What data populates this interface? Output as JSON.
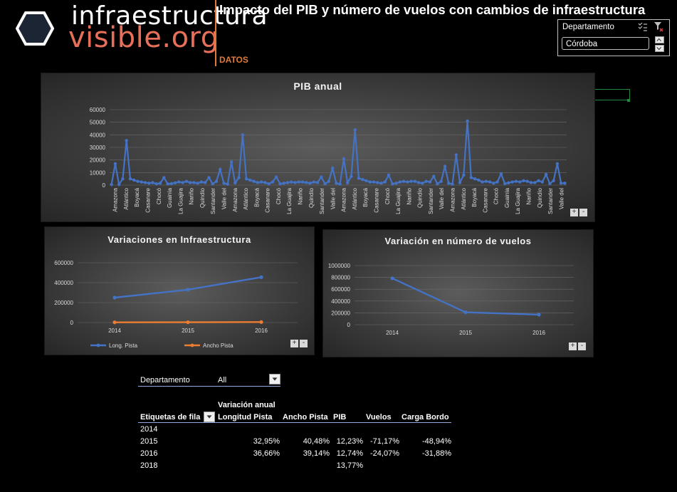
{
  "header": {
    "logo_line1": "infraestructura",
    "logo_line2": "visible.org",
    "title": "Impacto del PIB y número de vuelos con cambios de infraestructura",
    "section_label": "DATOS"
  },
  "colors": {
    "accent": "#e07a3a",
    "logo_orange": "#e8705a",
    "series_blue": "#4472c4",
    "series_orange": "#ed7d31"
  },
  "slicer": {
    "header": "Departamento",
    "selected": "Córdoba",
    "icons": [
      "multi-select-icon",
      "clear-filter-icon",
      "scroll-up-icon",
      "scroll-down-icon"
    ]
  },
  "chart_data": [
    {
      "type": "line",
      "title": "PIB anual",
      "ylim": [
        0,
        60000
      ],
      "yticks": [
        0,
        10000,
        20000,
        30000,
        40000,
        50000,
        60000
      ],
      "x_tick_labels": [
        "Amazona",
        "Atlántico",
        "Boyacá",
        "Casanare",
        "Chocó",
        "Guainía",
        "La Guajira",
        "Nariño",
        "Quindío",
        "Santander",
        "Valle del",
        "Amazona",
        "Atlántico",
        "Boyacá",
        "Casanare",
        "Chocó",
        "La Guajira",
        "Nariño",
        "Quindío",
        "Santander",
        "Valle del",
        "Amazona",
        "Atlántico",
        "Boyacá",
        "Casanare",
        "Chocó",
        "La Guajira",
        "Nariño",
        "Quindío",
        "Santander",
        "Valle del",
        "Amazona",
        "Atlántico",
        "Boyacá",
        "Casanare",
        "Chocó",
        "Guainía",
        "La Guajira",
        "Nariño",
        "Quindío",
        "Santander",
        "Valle del"
      ],
      "grid": true,
      "series": [
        {
          "values": [
            500,
            17000,
            500,
            5000,
            35500,
            5000,
            4000,
            3000,
            2500,
            2000,
            1500,
            2000,
            1000,
            1500,
            6000,
            1000,
            1200,
            1800,
            2500,
            2000,
            3000,
            2000,
            2000,
            1500,
            2500,
            2000,
            6000,
            1000,
            3000,
            12500,
            1500,
            800,
            18500,
            1800,
            6000,
            40000,
            5000,
            4000,
            3000,
            2000,
            2500,
            2000,
            1000,
            2500,
            6500,
            1000,
            1500,
            2000,
            2500,
            2000,
            2500,
            2500,
            2000,
            1500,
            2500,
            2000,
            6500,
            1000,
            3000,
            13500,
            1500,
            800,
            21000,
            1800,
            7000,
            44000,
            5500,
            4500,
            3500,
            2500,
            2500,
            2000,
            1500,
            2500,
            8000,
            1000,
            1500,
            2500,
            3000,
            2500,
            3000,
            3000,
            2000,
            1500,
            3000,
            2500,
            7000,
            1000,
            3000,
            15000,
            1500,
            800,
            24000,
            2000,
            8000,
            51000,
            6000,
            5000,
            4000,
            2500,
            3000,
            2500,
            1500,
            2500,
            9000,
            1200,
            1800,
            2500,
            3000,
            2500,
            3500,
            3000,
            2000,
            2000,
            3500,
            2500,
            8500,
            1200,
            3500,
            17000,
            1500,
            1500
          ]
        }
      ]
    },
    {
      "type": "line",
      "title": "Variaciones en Infraestructura",
      "categories": [
        "2014",
        "2015",
        "2016"
      ],
      "ylim": [
        0,
        600000
      ],
      "yticks": [
        0,
        200000,
        400000,
        600000
      ],
      "grid": true,
      "legend": "bottom",
      "series": [
        {
          "name": "Long. Pista",
          "values": [
            250000,
            330000,
            455000
          ]
        },
        {
          "name": "Ancho Pista",
          "values": [
            2000,
            3000,
            5000
          ]
        }
      ]
    },
    {
      "type": "line",
      "title": "Variación en número de vuelos",
      "categories": [
        "2014",
        "2015",
        "2016"
      ],
      "ylim": [
        0,
        1000000
      ],
      "yticks": [
        0,
        200000,
        400000,
        600000,
        800000,
        1000000
      ],
      "grid": true,
      "series": [
        {
          "values": [
            785000,
            210000,
            170000
          ]
        }
      ]
    }
  ],
  "pivot": {
    "filter_label": "Departamento",
    "filter_value": "All",
    "measure_caption": "Variación anual",
    "headers": [
      "Etiquetas de fila",
      "Longitud Pista",
      "Ancho Pista",
      "PIB",
      "Vuelos",
      "Carga Bordo"
    ],
    "rows": [
      {
        "label": "2014",
        "longitud": "",
        "ancho": "",
        "pib": "",
        "vuelos": "",
        "carga": ""
      },
      {
        "label": "2015",
        "longitud": "32,95%",
        "ancho": "40,48%",
        "pib": "12,23%",
        "vuelos": "-71,17%",
        "carga": "-48,94%"
      },
      {
        "label": "2016",
        "longitud": "36,66%",
        "ancho": "39,14%",
        "pib": "12,74%",
        "vuelos": "-24,07%",
        "carga": "-31,88%"
      },
      {
        "label": "2018",
        "longitud": "",
        "ancho": "",
        "pib": "13,77%",
        "vuelos": "",
        "carga": ""
      }
    ]
  },
  "chart_controls": {
    "zoom_in": "+",
    "zoom_out": "-"
  }
}
